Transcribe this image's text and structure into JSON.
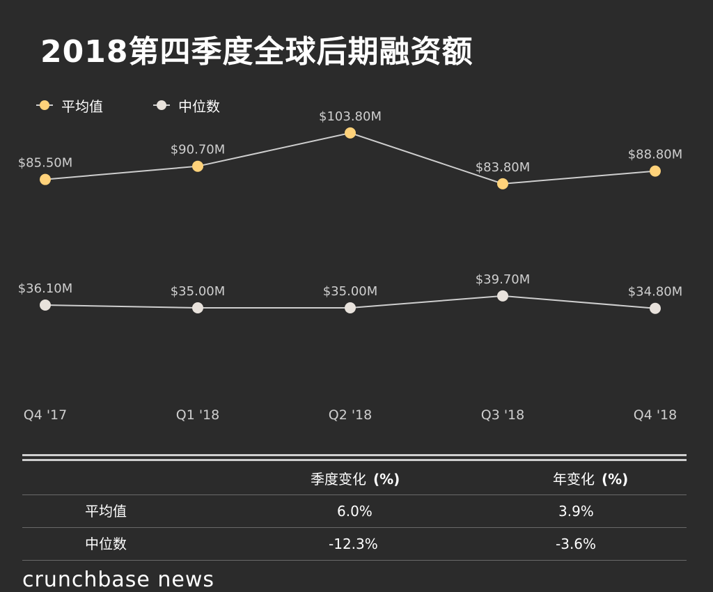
{
  "title": "2018第四季度全球后期融资额",
  "colors": {
    "background": "#2b2b2b",
    "mean": "#ffd27a",
    "median": "#e8e2dc",
    "line": "#cfcfcf",
    "text": "#ffffff",
    "axis_text": "#cfcfcf"
  },
  "chart_data": {
    "type": "line",
    "categories": [
      "Q4 '17",
      "Q1 '18",
      "Q2 '18",
      "Q3 '18",
      "Q4 '18"
    ],
    "series": [
      {
        "name": "平均值",
        "values": [
          85.5,
          90.7,
          103.8,
          83.8,
          88.8
        ],
        "labels": [
          "$85.50M",
          "$90.70M",
          "$103.80M",
          "$83.80M",
          "$88.80M"
        ],
        "color": "#ffd27a"
      },
      {
        "name": "中位数",
        "values": [
          36.1,
          35.0,
          35.0,
          39.7,
          34.8
        ],
        "labels": [
          "$36.10M",
          "$35.00M",
          "$35.00M",
          "$39.70M",
          "$34.80M"
        ],
        "color": "#e8e2dc"
      }
    ],
    "ylim": [
      0,
      110
    ],
    "legend_position": "top-left",
    "grid": false
  },
  "table": {
    "headers": [
      "",
      "季度变化",
      "年变化"
    ],
    "header_unit": "(%)",
    "rows": [
      {
        "label": "平均值",
        "qoq": "6.0%",
        "yoy": "3.9%"
      },
      {
        "label": "中位数",
        "qoq": "-12.3%",
        "yoy": "-3.6%"
      }
    ]
  },
  "footer": "crunchbase news"
}
